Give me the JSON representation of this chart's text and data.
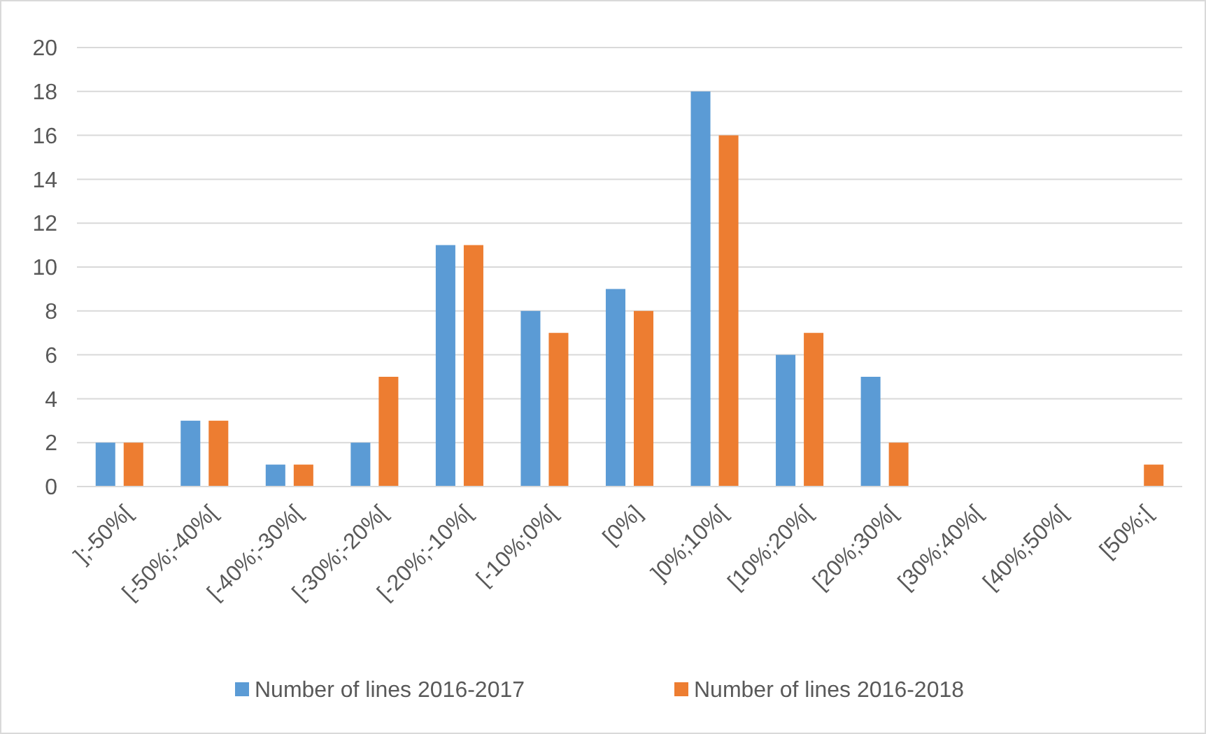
{
  "chart_data": {
    "type": "bar",
    "categories": [
      "];-50%[",
      "[-50%;-40%[",
      "[-40%;-30%[",
      "[-30%;-20%[",
      "[-20%;-10%[",
      "[-10%;0%[",
      "[0%]",
      "]0%;10%[",
      "[10%;20%[",
      "[20%;30%[",
      "[30%;40%[",
      "[40%;50%[",
      "[50%;["
    ],
    "series": [
      {
        "name": "Number of lines 2016-2017",
        "color": "#5b9bd5",
        "values": [
          2,
          3,
          1,
          2,
          11,
          8,
          9,
          18,
          6,
          5,
          0,
          0,
          0
        ]
      },
      {
        "name": "Number of lines 2016-2018",
        "color": "#ed7d31",
        "values": [
          2,
          3,
          1,
          5,
          11,
          7,
          8,
          16,
          7,
          2,
          0,
          0,
          1
        ]
      }
    ],
    "ylim": [
      0,
      20
    ],
    "yticks": [
      0,
      2,
      4,
      6,
      8,
      10,
      12,
      14,
      16,
      18,
      20
    ],
    "grid": "y",
    "legend": "bottom"
  }
}
